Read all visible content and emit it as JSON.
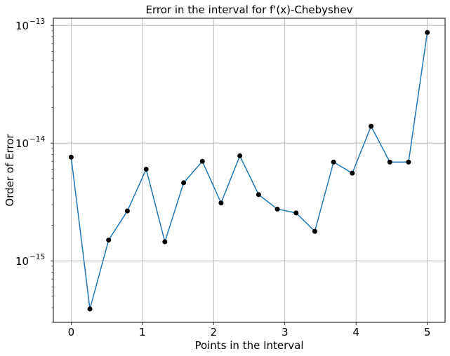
{
  "chart_data": {
    "type": "line",
    "title": "Error in the interval for f'(x)-Chebyshev",
    "xlabel": "Points in the Interval",
    "ylabel": "Order of Error",
    "yscale": "log",
    "xlim": [
      -0.25,
      5.25
    ],
    "ylim": [
      3e-16,
      1.15e-13
    ],
    "grid": true,
    "xticks": [
      0,
      1,
      2,
      3,
      4,
      5
    ],
    "xtick_labels": [
      "0",
      "1",
      "2",
      "3",
      "4",
      "5"
    ],
    "yticks": [
      1e-15,
      1e-14,
      1e-13
    ],
    "ytick_labels": [
      {
        "base": "10",
        "exp": "−15"
      },
      {
        "base": "10",
        "exp": "−14"
      },
      {
        "base": "10",
        "exp": "−13"
      }
    ],
    "line_color": "#1f77b4",
    "marker_color": "#000000",
    "series": [
      {
        "x": [
          0,
          0.263,
          0.526,
          0.789,
          1.053,
          1.316,
          1.579,
          1.842,
          2.105,
          2.368,
          2.632,
          2.895,
          3.158,
          3.421,
          3.684,
          3.947,
          4.211,
          4.474,
          4.737,
          5.0
        ],
        "y": [
          7.6e-15,
          3.9e-16,
          1.5e-15,
          2.65e-15,
          6e-15,
          1.45e-15,
          4.6e-15,
          7e-15,
          3.1e-15,
          7.8e-15,
          3.65e-15,
          2.75e-15,
          2.55e-15,
          1.78e-15,
          6.9e-15,
          5.55e-15,
          1.39e-14,
          6.9e-15,
          6.9e-15,
          8.7e-14
        ]
      }
    ]
  }
}
